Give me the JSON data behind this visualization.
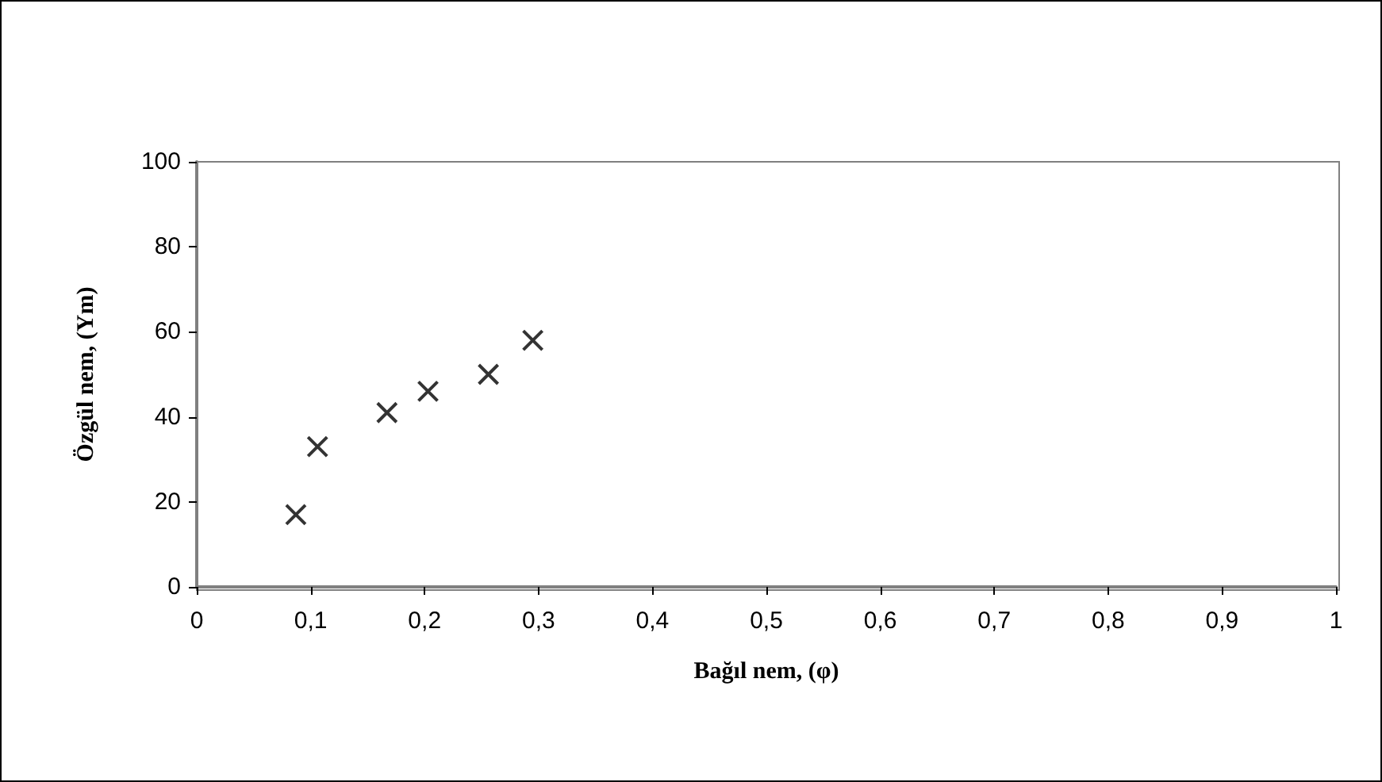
{
  "chart_data": {
    "type": "scatter",
    "xlabel": "Bağıl nem, (φ)",
    "ylabel": "Özgül nem, (Ym)",
    "x": [
      0.087,
      0.106,
      0.167,
      0.203,
      0.256,
      0.295
    ],
    "values": [
      17,
      33,
      41,
      46,
      50,
      58
    ],
    "color": "#000000",
    "marker": "cross",
    "xlim": [
      0,
      1
    ],
    "xticks": [
      0,
      {
        "value": 0.1,
        "label": "0,1"
      },
      {
        "value": 0.2,
        "label": "0,2"
      },
      {
        "value": 0.3,
        "label": "0,3"
      },
      {
        "value": 0.4,
        "label": "0,4"
      },
      {
        "value": 0.5,
        "label": "0,5"
      },
      {
        "value": 0.6,
        "label": "0,6"
      },
      {
        "value": 0.7,
        "label": "0,7"
      },
      {
        "value": 0.8,
        "label": "0,8"
      },
      {
        "value": 0.9,
        "label": "0,9"
      },
      1
    ],
    "ylim": [
      0,
      100
    ],
    "yticks": [
      0,
      20,
      40,
      60,
      80,
      100
    ]
  }
}
